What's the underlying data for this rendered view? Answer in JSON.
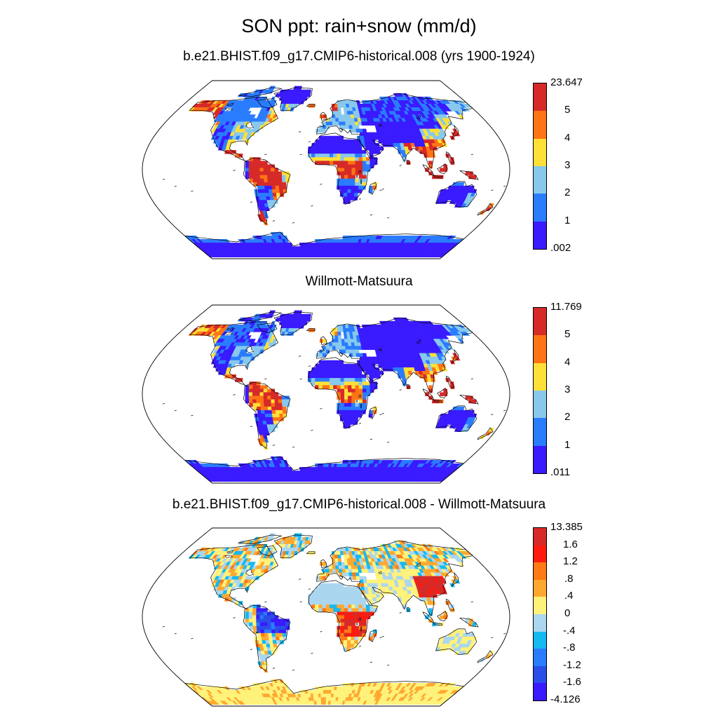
{
  "title": "SON ppt: rain+snow (mm/d)",
  "panels": [
    {
      "title": "b.e21.BHIST.f09_g17.CMIP6-historical.008 (yrs 1900-1924)",
      "colorbar": {
        "colors": [
          "#3a1aff",
          "#2a7cff",
          "#88c8ec",
          "#ffe038",
          "#ff7414",
          "#d62a28"
        ],
        "labels": [
          ".002",
          "1",
          "2",
          "3",
          "4",
          "5",
          "23.647"
        ]
      }
    },
    {
      "title": "Willmott-Matsuura",
      "colorbar": {
        "colors": [
          "#3a1aff",
          "#2a7cff",
          "#88c8ec",
          "#ffe038",
          "#ff7414",
          "#d62a28"
        ],
        "labels": [
          ".011",
          "1",
          "2",
          "3",
          "4",
          "5",
          "11.769"
        ]
      }
    },
    {
      "title": "b.e21.BHIST.f09_g17.CMIP6-historical.008 - Willmott-Matsuura",
      "colorbar": {
        "colors": [
          "#3a1aff",
          "#2a4ee8",
          "#2a7cff",
          "#16b8f0",
          "#aad6f0",
          "#fff27a",
          "#ffa830",
          "#ff7a14",
          "#ff1a10",
          "#d62a28"
        ],
        "labels": [
          "-4.126",
          "-1.6",
          "-1.2",
          "-.8",
          "-.4",
          "0",
          ".4",
          ".8",
          "1.2",
          "1.6",
          "13.385"
        ]
      }
    }
  ]
}
